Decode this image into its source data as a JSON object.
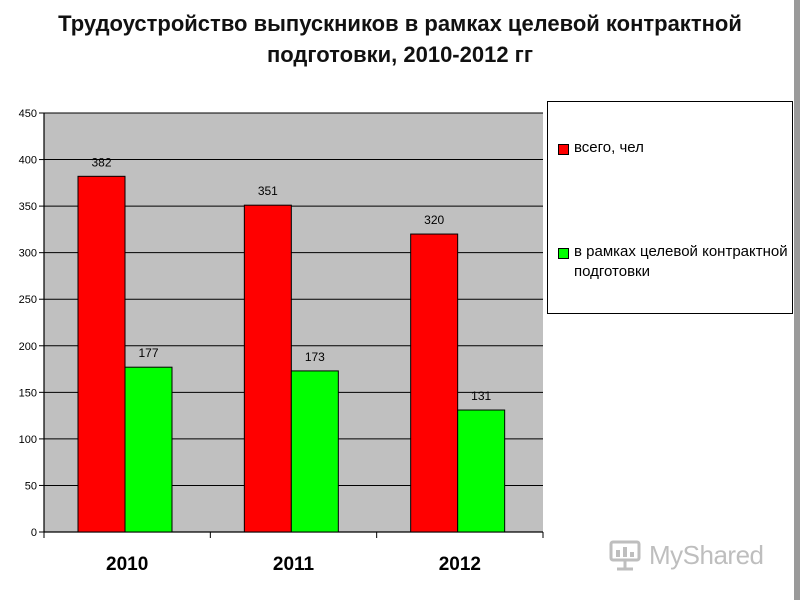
{
  "title_line1": "Трудоустройство выпускников в рамках целевой контрактной",
  "title_line2": "подготовки, 2010-2012 гг",
  "colors": {
    "total": "#ff0000",
    "targeted": "#00ff00",
    "plot_bg": "#c0c0c0"
  },
  "watermark": "MyShared",
  "chart_data": {
    "type": "bar",
    "title": "Трудоустройство выпускников в рамках целевой контрактной подготовки, 2010-2012 гг",
    "categories": [
      "2010",
      "2011",
      "2012"
    ],
    "series": [
      {
        "name": "всего, чел",
        "values": [
          382,
          351,
          320
        ],
        "color": "#ff0000"
      },
      {
        "name": "в рамках целевой контрактной подготовки",
        "values": [
          177,
          173,
          131
        ],
        "color": "#00ff00"
      }
    ],
    "ylim": [
      0,
      450
    ],
    "yticks": [
      0,
      50,
      100,
      150,
      200,
      250,
      300,
      350,
      400,
      450
    ],
    "grid": true,
    "legend_position": "right",
    "data_labels": true
  }
}
